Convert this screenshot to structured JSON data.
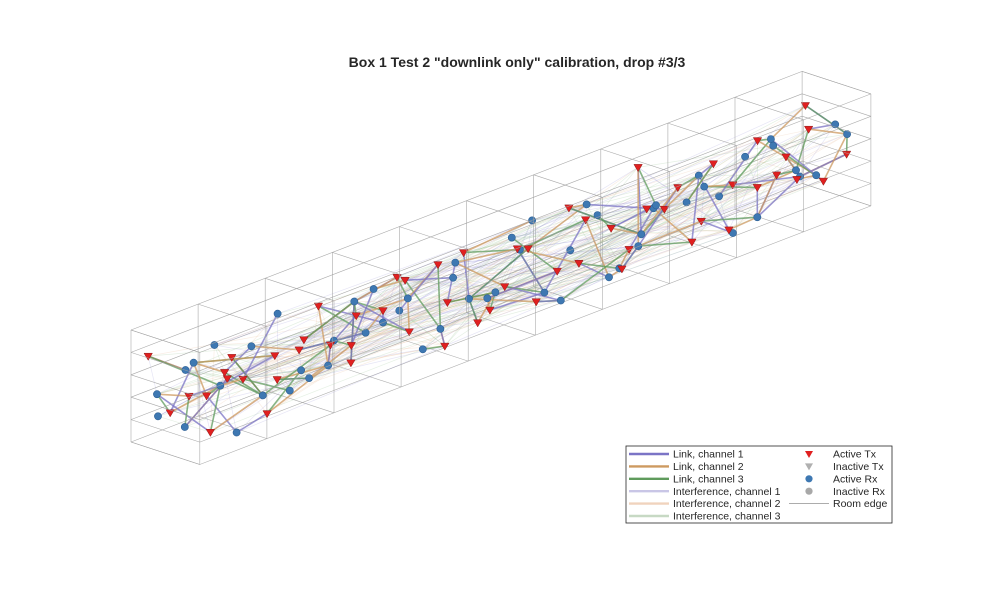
{
  "chart_data": {
    "type": "scatter",
    "title": "Box 1 Test 2 \"downlink only\" calibration, drop #3/3",
    "grid": false,
    "legend_position": "bottom-right",
    "legend": {
      "items": [
        {
          "label": "Link, channel 1",
          "kind": "line",
          "color": "#7b74c6"
        },
        {
          "label": "Link, channel 2",
          "kind": "line",
          "color": "#cd9a60"
        },
        {
          "label": "Link, channel 3",
          "kind": "line",
          "color": "#5f9b5c"
        },
        {
          "label": "Interference, channel 1",
          "kind": "faint-line",
          "color": "#c9c6e6"
        },
        {
          "label": "Interference, channel 2",
          "kind": "faint-line",
          "color": "#f0d3bd"
        },
        {
          "label": "Interference, channel 3",
          "kind": "faint-line",
          "color": "#c7d9c4"
        },
        {
          "label": "Active Tx",
          "kind": "triangle",
          "color": "#e02020"
        },
        {
          "label": "Inactive Tx",
          "kind": "triangle",
          "color": "#b0b0b0"
        },
        {
          "label": "Active Rx",
          "kind": "circle",
          "color": "#3e78b2"
        },
        {
          "label": "Inactive Rx",
          "kind": "circle",
          "color": "#a8a8a8"
        },
        {
          "label": "Room edge",
          "kind": "edge",
          "color": "#a0a0a0"
        }
      ]
    },
    "series": [
      {
        "name": "Active Tx",
        "points": [
          [
            0.4,
            0.6,
            3.8
          ],
          [
            0.4,
            2.2,
            1.6
          ],
          [
            0.8,
            4.2,
            2.6
          ],
          [
            1.4,
            3.5,
            0.6
          ],
          [
            1.6,
            4.4,
            3.1
          ],
          [
            2.1,
            0.8,
            1.4
          ],
          [
            2.6,
            3.1,
            3.4
          ],
          [
            3.2,
            1.6,
            2.2
          ],
          [
            3.6,
            4.6,
            3.4
          ],
          [
            4.3,
            2.9,
            0.2
          ],
          [
            4.7,
            0.5,
            1.1
          ],
          [
            5.3,
            3.6,
            2.8
          ],
          [
            5.8,
            1.2,
            0.8
          ],
          [
            6.4,
            4.1,
            2.7
          ],
          [
            6.9,
            2.4,
            3.9
          ],
          [
            7.3,
            0.7,
            1.9
          ],
          [
            7.8,
            3.3,
            1.2
          ],
          [
            8.5,
            4.5,
            3.5
          ],
          [
            8.9,
            1.9,
            2.6
          ],
          [
            9.6,
            0.4,
            0.7
          ],
          [
            10.1,
            3.8,
            1.8
          ],
          [
            10.6,
            2.1,
            3.7
          ],
          [
            11.2,
            4.6,
            0.9
          ],
          [
            11.7,
            0.9,
            2.9
          ],
          [
            12.3,
            3.0,
            2.1
          ],
          [
            12.8,
            1.5,
            3.3
          ],
          [
            13.4,
            4.3,
            1.6
          ],
          [
            13.9,
            2.6,
            0.5
          ],
          [
            14.5,
            0.6,
            3.0
          ],
          [
            15.0,
            3.7,
            3.6
          ],
          [
            15.6,
            1.8,
            1.3
          ],
          [
            16.1,
            4.8,
            2.4
          ],
          [
            16.7,
            2.3,
            0.3
          ],
          [
            17.2,
            0.9,
            2.2
          ],
          [
            17.8,
            4.1,
            3.9
          ],
          [
            18.3,
            2.8,
            1.5
          ],
          [
            18.9,
            1.1,
            3.4
          ],
          [
            19.5,
            4.5,
            2.0
          ],
          [
            20.1,
            3.0,
            0.6
          ],
          [
            20.6,
            1.4,
            1.9
          ],
          [
            21.2,
            4.3,
            3.1
          ],
          [
            21.7,
            2.2,
            2.5
          ],
          [
            22.3,
            0.6,
            3.8
          ],
          [
            22.8,
            3.7,
            0.9
          ],
          [
            23.4,
            1.7,
            2.7
          ],
          [
            23.9,
            4.6,
            1.2
          ],
          [
            24.5,
            2.5,
            3.5
          ],
          [
            25.0,
            0.8,
            0.4
          ],
          [
            25.6,
            3.9,
            2.3
          ],
          [
            26.1,
            1.3,
            1.7
          ],
          [
            26.7,
            4.2,
            3.3
          ],
          [
            27.2,
            2.7,
            2.0
          ],
          [
            27.7,
            0.5,
            2.9
          ],
          [
            28.2,
            3.4,
            3.8
          ],
          [
            28.6,
            1.9,
            1.1
          ],
          [
            29.1,
            4.7,
            2.6
          ],
          [
            29.6,
            2.2,
            0.7
          ],
          [
            29.9,
            0.4,
            3.6
          ]
        ]
      },
      {
        "name": "Active Rx",
        "points": [
          [
            0.3,
            1.4,
            2.3
          ],
          [
            0.5,
            3.1,
            1.1
          ],
          [
            0.9,
            0.5,
            0.9
          ],
          [
            1.2,
            2.6,
            3.6
          ],
          [
            1.7,
            1.2,
            2.8
          ],
          [
            2.2,
            4.1,
            0.4
          ],
          [
            2.7,
            2.1,
            1.9
          ],
          [
            3.3,
            0.7,
            3.2
          ],
          [
            3.8,
            3.4,
            1.3
          ],
          [
            4.4,
            1.6,
            2.9
          ],
          [
            4.9,
            4.4,
            2.2
          ],
          [
            5.5,
            2.6,
            0.7
          ],
          [
            6.0,
            0.9,
            3.6
          ],
          [
            6.6,
            3.6,
            1.6
          ],
          [
            7.1,
            1.4,
            0.4
          ],
          [
            7.6,
            4.7,
            2.9
          ],
          [
            8.2,
            2.9,
            3.7
          ],
          [
            8.7,
            0.6,
            1.3
          ],
          [
            9.3,
            3.2,
            2.4
          ],
          [
            9.8,
            1.7,
            3.4
          ],
          [
            10.4,
            4.3,
            1.0
          ],
          [
            10.9,
            2.4,
            2.7
          ],
          [
            11.5,
            0.8,
            1.6
          ],
          [
            12.0,
            3.9,
            3.5
          ],
          [
            12.6,
            2.0,
            0.6
          ],
          [
            13.1,
            4.6,
            2.3
          ],
          [
            13.7,
            1.3,
            3.0
          ],
          [
            14.2,
            3.4,
            1.9
          ],
          [
            14.8,
            0.5,
            0.8
          ],
          [
            15.3,
            2.8,
            3.8
          ],
          [
            15.9,
            4.2,
            1.4
          ],
          [
            16.4,
            1.6,
            2.6
          ],
          [
            17.0,
            3.6,
            0.5
          ],
          [
            17.5,
            0.7,
            3.3
          ],
          [
            18.1,
            2.5,
            2.1
          ],
          [
            18.6,
            4.5,
            1.1
          ],
          [
            19.2,
            1.9,
            3.6
          ],
          [
            19.8,
            3.3,
            0.8
          ],
          [
            20.3,
            0.9,
            2.5
          ],
          [
            20.9,
            4.0,
            3.2
          ],
          [
            21.4,
            2.3,
            1.5
          ],
          [
            22.0,
            1.1,
            0.5
          ],
          [
            22.5,
            3.8,
            2.8
          ],
          [
            23.1,
            0.6,
            1.8
          ],
          [
            23.6,
            2.9,
            3.4
          ],
          [
            24.2,
            4.4,
            0.9
          ],
          [
            24.7,
            1.5,
            2.2
          ],
          [
            25.3,
            3.5,
            3.7
          ],
          [
            25.8,
            0.8,
            1.2
          ],
          [
            26.4,
            2.6,
            0.4
          ],
          [
            26.9,
            4.6,
            2.7
          ],
          [
            27.5,
            1.8,
            3.3
          ],
          [
            28.0,
            3.1,
            1.7
          ],
          [
            28.4,
            0.5,
            2.4
          ],
          [
            28.9,
            4.2,
            3.9
          ],
          [
            29.4,
            2.0,
            1.0
          ],
          [
            29.8,
            3.6,
            3.0
          ]
        ]
      }
    ]
  }
}
